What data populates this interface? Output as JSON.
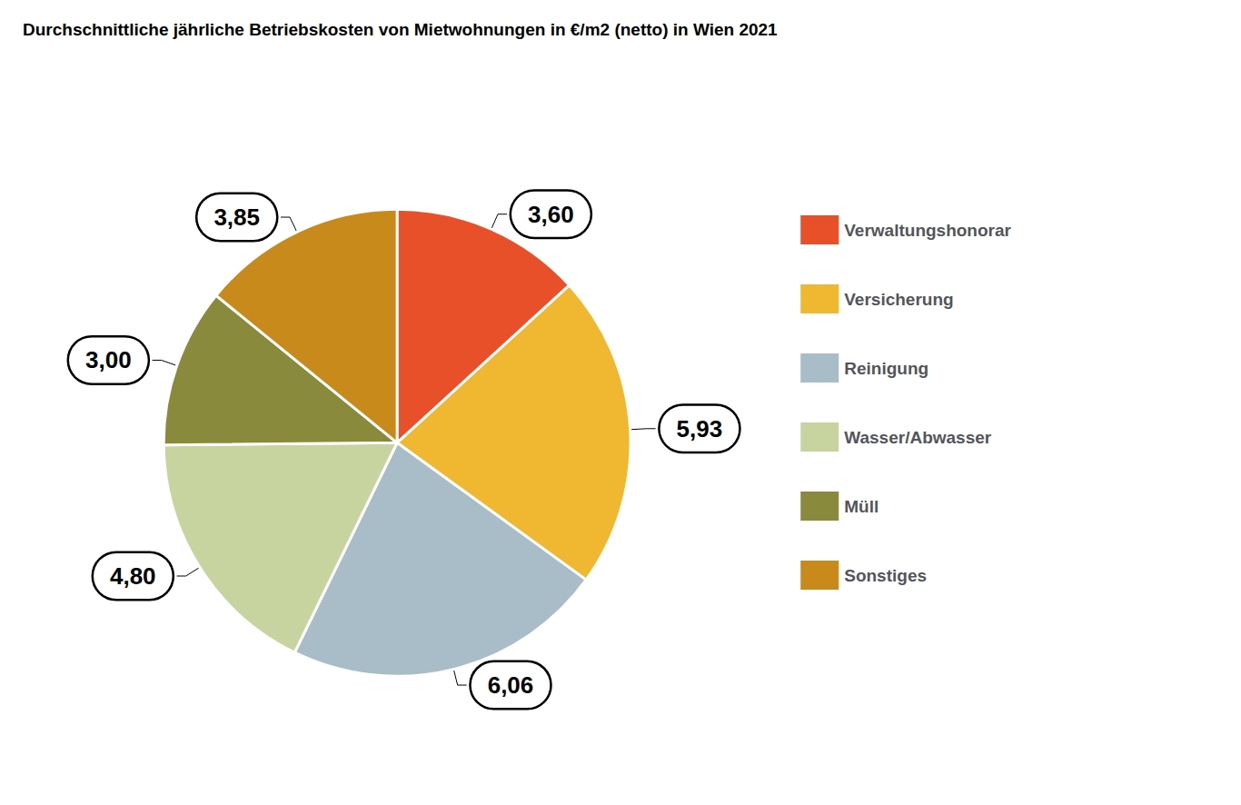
{
  "chart_data": {
    "type": "pie",
    "title": "Durchschnittliche jährliche Betriebskosten von Mietwohnungen in €/m2 (netto) in Wien 2021",
    "categories": [
      "Verwaltungshonorar",
      "Versicherung",
      "Reinigung",
      "Wasser/Abwasser",
      "Müll",
      "Sonstiges"
    ],
    "values": [
      3.6,
      5.93,
      6.06,
      4.8,
      3.0,
      3.85
    ],
    "value_labels": [
      "3,60",
      "5,93",
      "6,06",
      "4,80",
      "3,00",
      "3,85"
    ],
    "colors": [
      "#E8502A",
      "#F0B830",
      "#A8BDC8",
      "#C8D4A0",
      "#8A8A3C",
      "#C88A1A"
    ],
    "data_labels": true,
    "legend": "right"
  }
}
